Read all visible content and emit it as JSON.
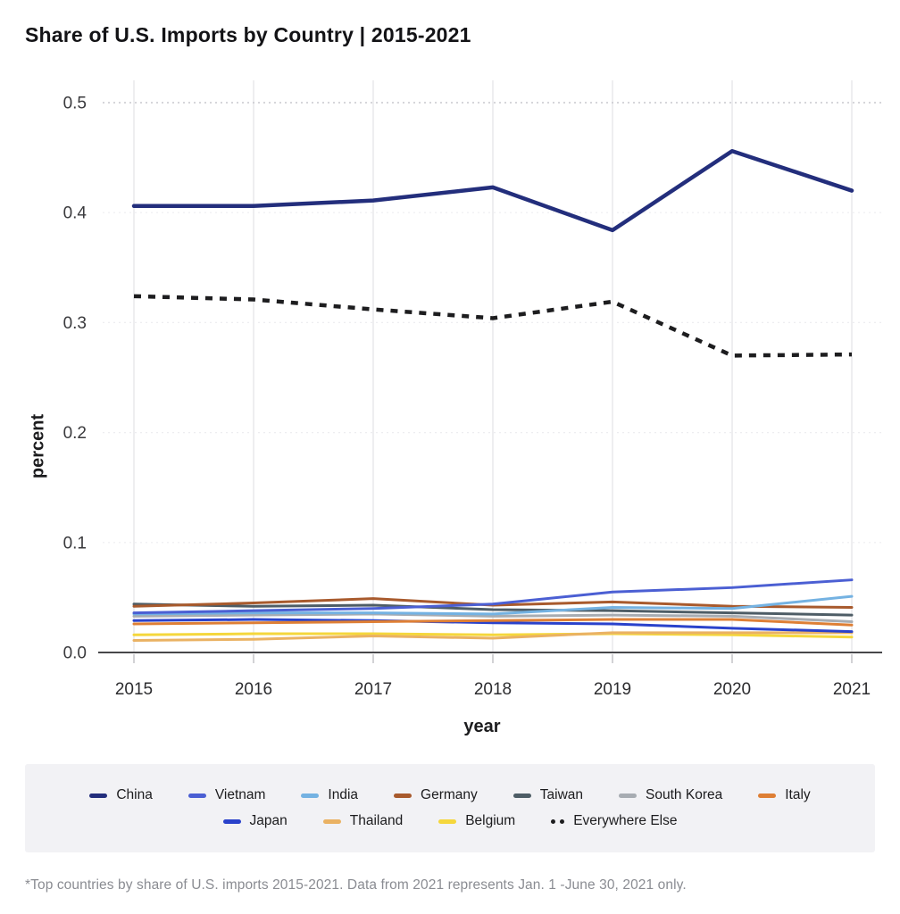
{
  "header": {
    "title": "Share of U.S. Imports by Country | 2015-2021"
  },
  "footnote": "*Top countries by share of U.S. imports 2015-2021. Data from 2021 represents Jan. 1 -June 30, 2021 only.",
  "style": {
    "background": "#ffffff",
    "legend_background": "#f2f2f5",
    "axis_line_color": "#47474a",
    "grid_color": "#e5e5e8",
    "dotted_grid_color": "#c9c9cd",
    "faint_grid_color": "#ededf0",
    "tick_label_color": "#3a3a3d",
    "footnote_color": "#8a8c92"
  },
  "chart_data": {
    "type": "line",
    "title": "Share of U.S. Imports by Country | 2015-2021",
    "xlabel": "year",
    "ylabel": "percent",
    "x": [
      2015,
      2016,
      2017,
      2018,
      2019,
      2020,
      2021
    ],
    "ylim": [
      0,
      0.5
    ],
    "yticks": [
      0.0,
      0.1,
      0.2,
      0.3,
      0.4,
      0.5
    ],
    "ytick_labels": [
      "0.0",
      "0.1",
      "0.2",
      "0.3",
      "0.4",
      "0.5"
    ],
    "grid": "vertical line per year; dotted horizontal line per y tick",
    "legend_position": "bottom",
    "legend_rows": [
      7,
      4
    ],
    "series": [
      {
        "name": "China",
        "color": "#232e7c",
        "width": 4.5,
        "dash": false,
        "values": [
          0.406,
          0.406,
          0.411,
          0.423,
          0.384,
          0.456,
          0.42
        ]
      },
      {
        "name": "Vietnam",
        "color": "#4b5fd3",
        "width": 3,
        "dash": false,
        "values": [
          0.036,
          0.038,
          0.04,
          0.044,
          0.055,
          0.059,
          0.066
        ]
      },
      {
        "name": "India",
        "color": "#74b2e2",
        "width": 3,
        "dash": false,
        "values": [
          0.035,
          0.036,
          0.036,
          0.035,
          0.041,
          0.04,
          0.051
        ]
      },
      {
        "name": "Germany",
        "color": "#a85a2d",
        "width": 3,
        "dash": false,
        "values": [
          0.042,
          0.045,
          0.049,
          0.043,
          0.046,
          0.042,
          0.041
        ]
      },
      {
        "name": "Taiwan",
        "color": "#4e5d66",
        "width": 3,
        "dash": false,
        "values": [
          0.044,
          0.042,
          0.043,
          0.039,
          0.038,
          0.036,
          0.034
        ]
      },
      {
        "name": "South Korea",
        "color": "#a7acb2",
        "width": 3,
        "dash": false,
        "values": [
          0.033,
          0.034,
          0.035,
          0.033,
          0.034,
          0.033,
          0.028
        ]
      },
      {
        "name": "Italy",
        "color": "#de7f35",
        "width": 3,
        "dash": false,
        "values": [
          0.026,
          0.027,
          0.028,
          0.029,
          0.03,
          0.03,
          0.025
        ]
      },
      {
        "name": "Japan",
        "color": "#2a42cb",
        "width": 3,
        "dash": false,
        "values": [
          0.029,
          0.03,
          0.029,
          0.027,
          0.026,
          0.022,
          0.019
        ]
      },
      {
        "name": "Thailand",
        "color": "#eab263",
        "width": 3,
        "dash": false,
        "values": [
          0.011,
          0.012,
          0.015,
          0.013,
          0.018,
          0.018,
          0.018
        ]
      },
      {
        "name": "Belgium",
        "color": "#f5d73c",
        "width": 3,
        "dash": false,
        "values": [
          0.016,
          0.017,
          0.017,
          0.016,
          0.017,
          0.016,
          0.014
        ]
      },
      {
        "name": "Everywhere Else",
        "color": "#1d1d1f",
        "width": 4.5,
        "dash": true,
        "values": [
          0.324,
          0.321,
          0.312,
          0.304,
          0.319,
          0.27,
          0.271
        ]
      }
    ]
  }
}
